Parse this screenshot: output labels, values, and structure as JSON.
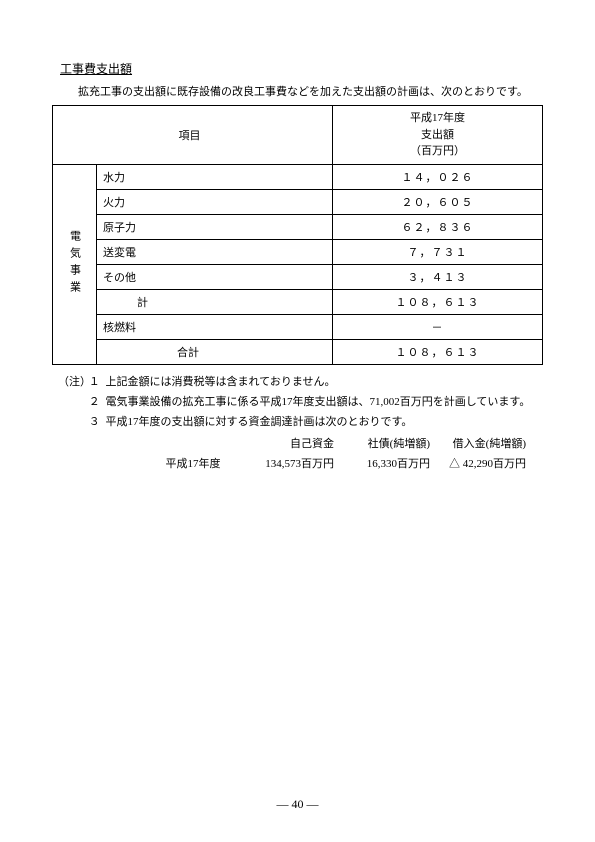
{
  "title": "工事費支出額",
  "lead": "拡充工事の支出額に既存設備の改良工事費などを加えた支出額の計画は、次のとおりです。",
  "table": {
    "header_item": "項目",
    "header_period": "平成17年度",
    "header_amount": "支出額",
    "header_unit": "（百万円）",
    "category_label": "電気事業",
    "rows": [
      {
        "label": "水力",
        "value": "１４，０２６"
      },
      {
        "label": "火力",
        "value": "２０，６０５"
      },
      {
        "label": "原子力",
        "value": "６２，８３６"
      },
      {
        "label": "送変電",
        "value": "７，７３１"
      },
      {
        "label": "その他",
        "value": "３，４１３"
      }
    ],
    "subtotal_label": "計",
    "subtotal_value": "１０８，６１３",
    "nuclear_fuel_label": "核燃料",
    "nuclear_fuel_value": "－",
    "total_label": "合計",
    "total_value": "１０８，６１３"
  },
  "notes": {
    "prefix": "（注）",
    "items": [
      "上記金額には消費税等は含まれておりません。",
      "電気事業設備の拡充工事に係る平成17年度支出額は、71,002百万円を計画しています。",
      "平成17年度の支出額に対する資金調達計画は次のとおりです。"
    ]
  },
  "funding": {
    "headers": [
      "自己資金",
      "社債(純増額)",
      "借入金(純増額)"
    ],
    "row_label": "平成17年度",
    "values": [
      "134,573百万円",
      "16,330百万円",
      "△ 42,290百万円"
    ]
  },
  "page_number": "― 40 ―"
}
